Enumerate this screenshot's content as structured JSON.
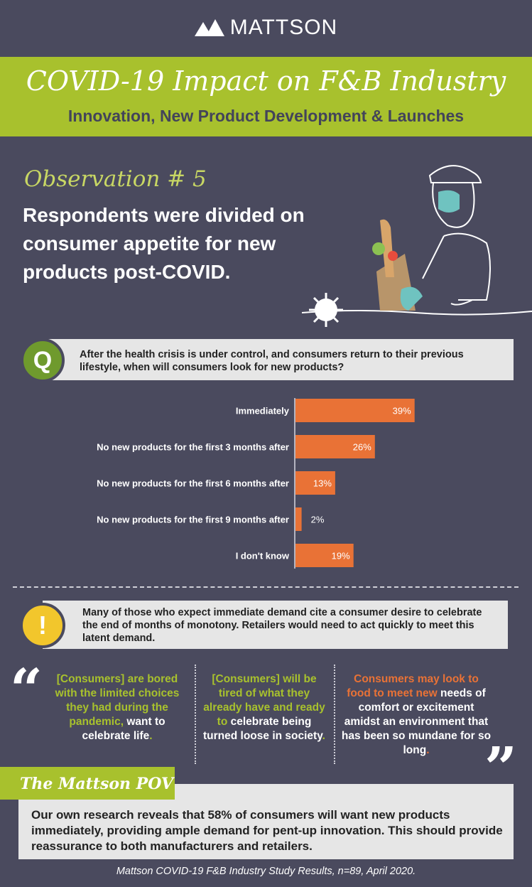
{
  "brand": {
    "name": "MATTSON"
  },
  "banner": {
    "title": "COVID-19 Impact on F&B Industry",
    "subtitle": "Innovation, New Product Development & Launches"
  },
  "observation": {
    "label": "Observation # 5",
    "headline": "Respondents were divided on consumer appetite for new products post-COVID."
  },
  "question": {
    "badge": "Q",
    "text": "After the health crisis is under control, and consumers return to their previous lifestyle, when will consumers look for new products?"
  },
  "chart_data": {
    "type": "bar",
    "orientation": "horizontal",
    "categories": [
      "Immediately",
      "No new products for the first 3 months after",
      "No new products for the first 6 months after",
      "No new products for the first 9 months after",
      "I don't know"
    ],
    "values": [
      39,
      26,
      13,
      2,
      19
    ],
    "value_labels": [
      "39%",
      "26%",
      "13%",
      "2%",
      "19%"
    ],
    "unit": "%",
    "xlim": [
      0,
      70
    ],
    "color": "#e97236"
  },
  "insight": {
    "badge": "!",
    "text": "Many of those who expect immediate demand cite a consumer desire to celebrate the end of months of monotony. Retailers would need to act quickly to meet this latent demand."
  },
  "quotes": {
    "q1": {
      "a": "[Consumers] are bored with the limited choices they had during the pandemic,",
      "b": "want to celebrate life",
      "c": "."
    },
    "q2": {
      "a": "[Consumers] will be tired of what they already have and ready to",
      "b": "celebrate being turned loose in society",
      "c": "."
    },
    "q3": {
      "a": "Consumers may look to food to meet new",
      "b": "needs of comfort or excitement amidst an environment that has been so mundane for so long",
      "c": "."
    }
  },
  "pov": {
    "title": "The Mattson POV",
    "text": "Our own research reveals that 58% of consumers will want new products immediately, providing ample demand for pent-up innovation. This should provide reassurance to both manufacturers and retailers."
  },
  "footer": {
    "text": "Mattson COVID-19 F&B Industry Study Results, n=89, April 2020."
  },
  "colors": {
    "background": "#4a4a5e",
    "green": "#a8c12d",
    "orange": "#e97236",
    "yellow": "#f2c62c"
  }
}
